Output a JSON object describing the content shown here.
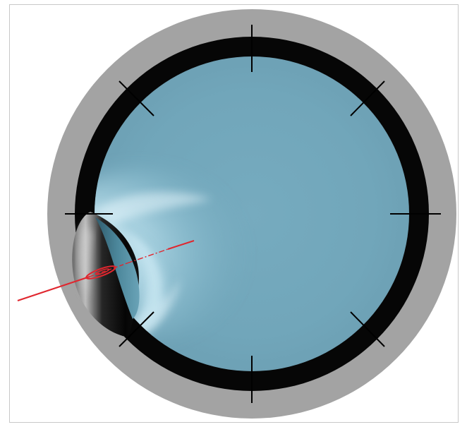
{
  "figure": {
    "description_visible_text": "",
    "colors": {
      "background": "#ffffff",
      "frame_border": "#c8c8c8",
      "outer_ring": "#a3a3a3",
      "dark_ring": "#060606",
      "fluid": "#73a8bc",
      "fluid_light": "#d6eef6",
      "tick": "#000000",
      "beam": "#e0262e"
    },
    "tick_count": 8,
    "icons": [
      "circular-chamber",
      "deformed-droplet",
      "laser-beam",
      "focus-ellipse"
    ]
  }
}
